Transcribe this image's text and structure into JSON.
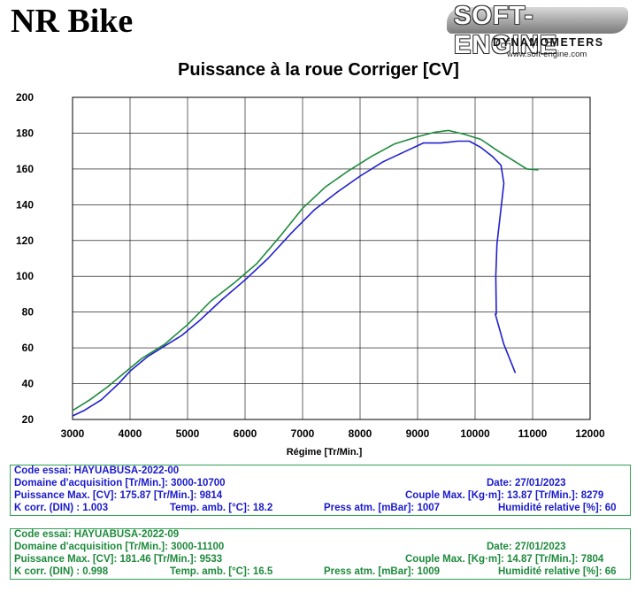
{
  "header": {
    "brand": "NR Bike",
    "logo_main": "SOFT-ENGINE",
    "logo_sub": "DYNAMOMETERS",
    "logo_url": "www.soft-engine.com"
  },
  "chart_data": {
    "type": "line",
    "title": "Puissance à la roue Corriger [CV]",
    "xlabel": "Régime [Tr/Min.]",
    "ylabel": "",
    "xlim": [
      3000,
      12000
    ],
    "ylim": [
      20,
      200
    ],
    "xticks": [
      3000,
      4000,
      5000,
      6000,
      7000,
      8000,
      9000,
      10000,
      11000,
      12000
    ],
    "yticks": [
      20,
      40,
      60,
      80,
      100,
      120,
      140,
      160,
      180,
      200
    ],
    "grid": true,
    "series": [
      {
        "color": "#2020cc",
        "x": [
          3000,
          3200,
          3500,
          3800,
          4000,
          4300,
          4600,
          4900,
          5200,
          5600,
          6000,
          6400,
          6800,
          7200,
          7600,
          8000,
          8400,
          8800,
          9100,
          9400,
          9700,
          9900,
          10100,
          10300,
          10450,
          10500,
          10450,
          10380,
          10360,
          10370,
          10350,
          10500,
          10700
        ],
        "y": [
          22,
          25,
          31,
          40,
          47,
          55,
          61,
          67,
          75,
          87,
          98,
          110,
          124,
          137,
          147,
          156,
          164,
          170,
          174.5,
          174.5,
          175.5,
          175.5,
          172,
          167,
          162,
          152,
          138,
          118,
          100,
          79,
          79,
          62,
          46
        ]
      },
      {
        "color": "#1e8a3c",
        "x": [
          3000,
          3300,
          3600,
          3900,
          4200,
          4600,
          5000,
          5400,
          5800,
          6200,
          6600,
          7000,
          7400,
          7800,
          8200,
          8600,
          9000,
          9300,
          9533,
          9800,
          10100,
          10400,
          10700,
          10900,
          11100
        ],
        "y": [
          25,
          31,
          38,
          46,
          54,
          62,
          73,
          86,
          96,
          107,
          122,
          138,
          150,
          159,
          167,
          174,
          178,
          180.5,
          181.5,
          179.5,
          176.5,
          170,
          164,
          160,
          159.5
        ]
      }
    ]
  },
  "info_panels": [
    {
      "code": "Code essai: HAYUABUSA-2022-00",
      "domain": "Domaine d'acquisition [Tr/Min.]: 3000-10700",
      "date": "Date: 27/01/2023",
      "power": "Puissance Max. [CV]: 175.87  [Tr/Min.]: 9814",
      "couple": "Couple Max. [Kg·m]: 13.87  [Tr/Min.]: 8279",
      "kcorr": "K corr. (DIN) : 1.003",
      "temp": "Temp. amb. [°C]: 18.2",
      "press": "Press atm. [mBar]: 1007",
      "hum": "Humidité relative [%]: 60"
    },
    {
      "code": "Code essai: HAYUABUSA-2022-09",
      "domain": "Domaine d'acquisition [Tr/Min.]: 3000-11100",
      "date": "Date: 27/01/2023",
      "power": "Puissance Max. [CV]: 181.46  [Tr/Min.]: 9533",
      "couple": "Couple Max. [Kg·m]: 14.87  [Tr/Min.]: 7804",
      "kcorr": "K corr. (DIN) : 0.998",
      "temp": "Temp. amb. [°C]: 16.5",
      "press": "Press atm. [mBar]: 1009",
      "hum": "Humidité relative [%]: 66"
    }
  ],
  "colors": {
    "panel1_text": "#1a1acc",
    "panel2_text": "#1e8a3c",
    "panel_border": "#33a055",
    "grid": "#000000"
  }
}
